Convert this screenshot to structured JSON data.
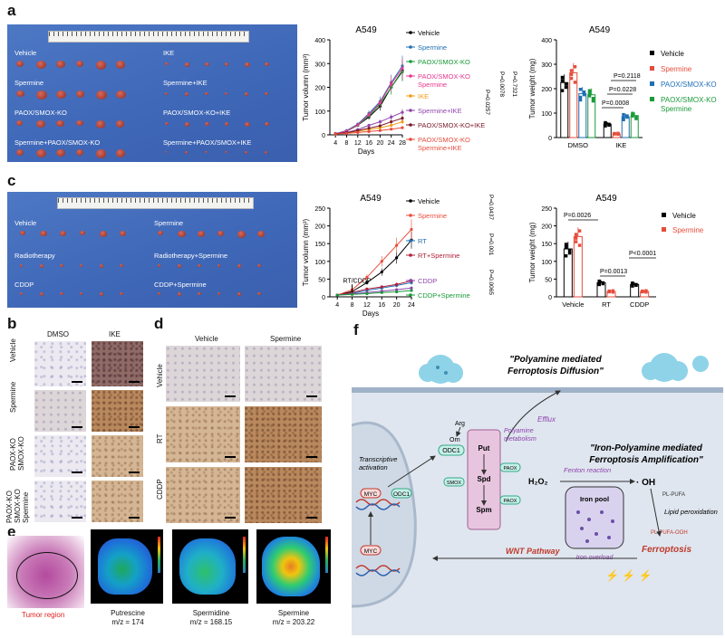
{
  "panel_labels": {
    "a": "a",
    "b": "b",
    "c": "c",
    "d": "d",
    "e": "e",
    "f": "f"
  },
  "photo_a": {
    "groups": [
      "Vehicle",
      "IKE",
      "Spermine",
      "Spermine+IKE",
      "PAOX/SMOX-KO",
      "PAOX/SMOX-KO+IKE",
      "Spermine+PAOX/SMOX-KO",
      "Spermine+PAOX/SMOX+IKE"
    ]
  },
  "photo_c": {
    "groups": [
      "Vehicle",
      "Spermine",
      "Radiotherapy",
      "Radiotherapy+Spermine",
      "CDDP",
      "CDDP+Spermine"
    ]
  },
  "chart_data": [
    {
      "type": "line",
      "title": "A549",
      "xlabel": "Days",
      "ylabel": "Tumor volumn (mm³)",
      "x": [
        4,
        8,
        12,
        16,
        20,
        24,
        28
      ],
      "ylim": [
        0,
        400
      ],
      "yticks": [
        0,
        100,
        200,
        300,
        400
      ],
      "series": [
        {
          "name": "Vehicle",
          "color": "#000000",
          "values": [
            5,
            15,
            40,
            75,
            120,
            200,
            270
          ]
        },
        {
          "name": "Spermine",
          "color": "#1f6fb5",
          "values": [
            5,
            18,
            45,
            90,
            140,
            220,
            290
          ]
        },
        {
          "name": "PAOX/SMOX-KO",
          "color": "#1a9a3a",
          "values": [
            5,
            15,
            40,
            80,
            130,
            200,
            265
          ]
        },
        {
          "name": "PAOX/SMOX-KO\nSpermine",
          "color": "#e8368f",
          "values": [
            5,
            16,
            42,
            85,
            135,
            215,
            280
          ]
        },
        {
          "name": "IKE",
          "color": "#f39c12",
          "values": [
            5,
            8,
            15,
            22,
            30,
            40,
            55
          ]
        },
        {
          "name": "Spermine+IKE",
          "color": "#8e44ad",
          "values": [
            5,
            10,
            22,
            40,
            55,
            75,
            95
          ]
        },
        {
          "name": "PAOX/SMOX-KO+IKE",
          "color": "#7b1a2a",
          "values": [
            5,
            9,
            18,
            28,
            38,
            55,
            70
          ]
        },
        {
          "name": "PAOX/SMOX-KO\nSpermine+IKE",
          "color": "#e74c3c",
          "values": [
            4,
            6,
            10,
            14,
            18,
            24,
            30
          ]
        }
      ],
      "pvalues": [
        "P=0.0257",
        "P=0.0078",
        "P=0.7321"
      ]
    },
    {
      "type": "bar",
      "title": "A549",
      "ylabel": "Tumor weight (mg)",
      "categories": [
        "DMSO",
        "IKE"
      ],
      "ylim": [
        0,
        400
      ],
      "yticks": [
        0,
        100,
        200,
        300,
        400
      ],
      "series": [
        {
          "name": "Vehicle",
          "color": "#000000",
          "values": [
            225,
            55
          ]
        },
        {
          "name": "Spermine",
          "color": "#e74c3c",
          "values": [
            265,
            15
          ]
        },
        {
          "name": "PAOX/SMOX-KO",
          "color": "#1f6fb5",
          "values": [
            180,
            85
          ]
        },
        {
          "name": "PAOX/SMOX-KO\nSpermine",
          "color": "#1a9a3a",
          "values": [
            175,
            90
          ]
        }
      ],
      "pvalues": [
        "P=0.2118",
        "P=0.0228",
        "P=0.0008"
      ]
    },
    {
      "type": "line",
      "title": "A549",
      "xlabel": "Days",
      "ylabel": "Tumor volumn (mm³)",
      "x": [
        4,
        8,
        12,
        16,
        20,
        24
      ],
      "ylim": [
        0,
        250
      ],
      "yticks": [
        0,
        50,
        100,
        150,
        200,
        250
      ],
      "annotation": "RT/CDDP",
      "series": [
        {
          "name": "Vehicle",
          "color": "#000000",
          "values": [
            5,
            15,
            40,
            70,
            110,
            160
          ]
        },
        {
          "name": "Spermine",
          "color": "#e74c3c",
          "values": [
            5,
            20,
            55,
            100,
            145,
            190
          ]
        },
        {
          "name": "RT",
          "color": "#1f6fb5",
          "values": [
            5,
            10,
            18,
            25,
            32,
            40
          ]
        },
        {
          "name": "RT+Spermine",
          "color": "#b0203a",
          "values": [
            5,
            12,
            22,
            28,
            35,
            45
          ]
        },
        {
          "name": "CDDP",
          "color": "#8e44ad",
          "values": [
            5,
            8,
            12,
            16,
            20,
            25
          ]
        },
        {
          "name": "CDDP+Spermine",
          "color": "#1a9a3a",
          "values": [
            5,
            7,
            9,
            12,
            14,
            18
          ]
        }
      ],
      "pvalues": [
        "P=0.0437",
        "P=0.001",
        "P=0.0065"
      ]
    },
    {
      "type": "bar",
      "title": "A549",
      "ylabel": "Tumor weight (mg)",
      "categories": [
        "Vehicle",
        "RT",
        "CDDP"
      ],
      "ylim": [
        0,
        250
      ],
      "yticks": [
        0,
        50,
        100,
        150,
        200,
        250
      ],
      "series": [
        {
          "name": "Vehicle",
          "color": "#000000",
          "values": [
            135,
            40,
            35
          ]
        },
        {
          "name": "Spermine",
          "color": "#e74c3c",
          "values": [
            170,
            15,
            15
          ]
        }
      ],
      "pvalues": [
        "P=0.0026",
        "P=0.0013",
        "P<0.0001"
      ]
    }
  ],
  "ihc_b": {
    "cols": [
      "DMSO",
      "IKE"
    ],
    "rows": [
      "Vehicle",
      "Spermine",
      "PAOX-KO\nSMOX-KO",
      "PAOX-KO\nSMOX-KO\nSpermine"
    ]
  },
  "ihc_d": {
    "cols": [
      "Vehicle",
      "Spermine"
    ],
    "rows": [
      "Vehicle",
      "RT",
      "CDDP"
    ]
  },
  "msi": {
    "region_label": "Tumor region",
    "items": [
      {
        "name": "Putrescine",
        "mz": "m/z = 174"
      },
      {
        "name": "Spermidine",
        "mz": "m/z = 168.15"
      },
      {
        "name": "Spermine",
        "mz": "m/z = 203.22"
      }
    ]
  },
  "diagram_f": {
    "diffusion": "\"Polyamine mediated\nFerroptosis Diffusion\"",
    "amplification": "\"Iron-Polyamine mediated\nFerroptosis Amplification\"",
    "efflux": "Efflux",
    "arg": "Arg",
    "orn": "Orn",
    "odc1": "ODC1",
    "odc1b": "ODC1",
    "put": "Put",
    "spd": "Spd",
    "spm": "Spm",
    "paox1": "PAOX",
    "paox2": "PAOX",
    "smox": "SMOX",
    "metabolism": "Polyamine\nmetabolism",
    "tx": "Transcriptive\nactivation",
    "myc1": "MYC",
    "myc2": "MYC",
    "h2o2": "H₂O₂",
    "fenton": "Fenton reaction",
    "oh": "· OH",
    "ironpool": "Iron pool",
    "ironoverload": "Iron overload",
    "wnt": "WNT Pathway",
    "ferroptosis": "Ferroptosis",
    "lipid": "Lipid peroxidation",
    "pufa": "PL-PUFA",
    "pufaooh": "PL-PUFA-OOH"
  }
}
